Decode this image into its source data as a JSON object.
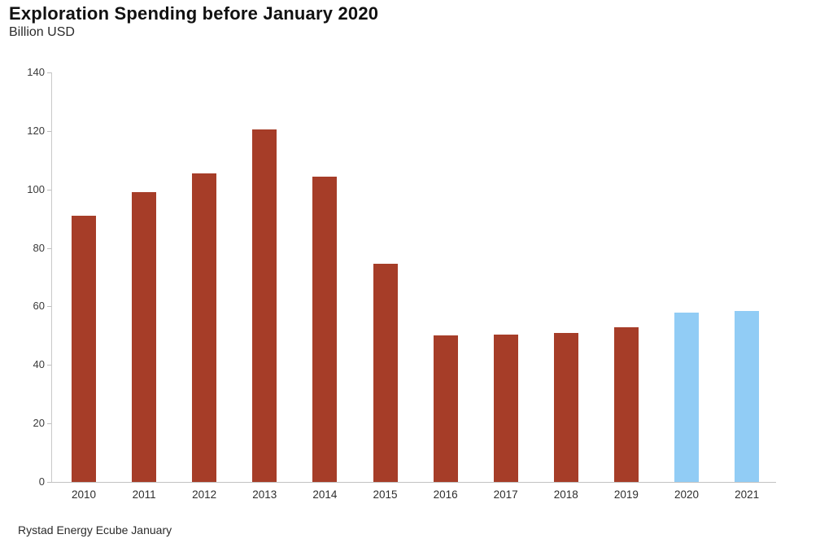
{
  "header": {
    "title": "Exploration Spending before January 2020",
    "subtitle": "Billion USD"
  },
  "footer": {
    "source": "Rystad Energy Ecube January"
  },
  "colors": {
    "bar_historical": "#A63D28",
    "bar_forecast": "#91CCF5",
    "axis_line": "#C9C9C9",
    "tick_text": "#3A3A3A",
    "title_text": "#111111",
    "background": "#FFFFFF"
  },
  "chart_data": {
    "type": "bar",
    "title": "Exploration Spending before January 2020",
    "subtitle": "Billion USD",
    "source": "Rystad Energy Ecube January",
    "categories": [
      "2010",
      "2011",
      "2012",
      "2013",
      "2014",
      "2015",
      "2016",
      "2017",
      "2018",
      "2019",
      "2020",
      "2021"
    ],
    "values": [
      91,
      99,
      105.5,
      120.5,
      104.5,
      74.5,
      50,
      50.5,
      51,
      53,
      58,
      58.5
    ],
    "bar_colors": [
      "#A63D28",
      "#A63D28",
      "#A63D28",
      "#A63D28",
      "#A63D28",
      "#A63D28",
      "#A63D28",
      "#A63D28",
      "#A63D28",
      "#A63D28",
      "#91CCF5",
      "#91CCF5"
    ],
    "xlabel": "",
    "ylabel": "Billion USD",
    "ylim": [
      0,
      140
    ],
    "yticks": [
      0,
      20,
      40,
      60,
      80,
      100,
      120,
      140
    ],
    "grid": false,
    "legend": null
  }
}
